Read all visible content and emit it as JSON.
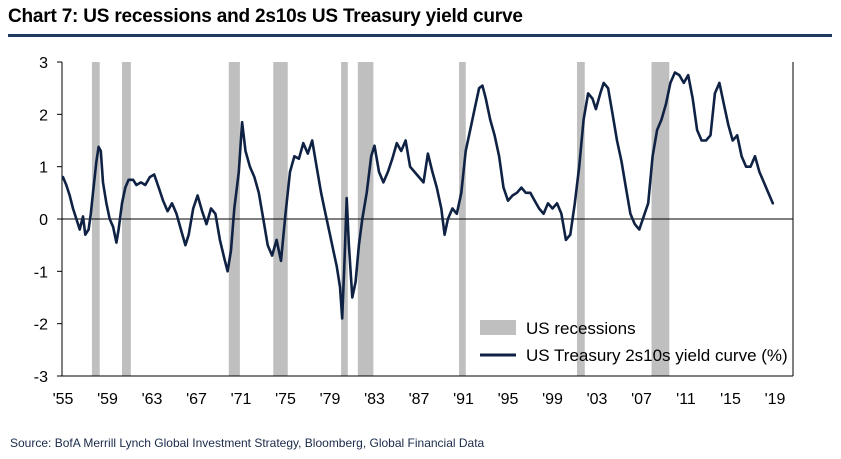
{
  "header": {
    "title": "Chart 7: US recessions and 2s10s US Treasury yield curve"
  },
  "footer": {
    "source": "Source:  BofA Merrill Lynch Global Investment Strategy, Bloomberg, Global Financial Data"
  },
  "chart_data": {
    "type": "line",
    "title": "Chart 7: US recessions and 2s10s US Treasury yield curve",
    "xlim": [
      1955,
      2020
    ],
    "ylim": [
      -3,
      3
    ],
    "x_ticks": [
      {
        "value": 1955,
        "label": "'55"
      },
      {
        "value": 1959,
        "label": "'59"
      },
      {
        "value": 1963,
        "label": "'63"
      },
      {
        "value": 1967,
        "label": "'67"
      },
      {
        "value": 1971,
        "label": "'71"
      },
      {
        "value": 1975,
        "label": "'75"
      },
      {
        "value": 1979,
        "label": "'79"
      },
      {
        "value": 1983,
        "label": "'83"
      },
      {
        "value": 1987,
        "label": "'87"
      },
      {
        "value": 1991,
        "label": "'91"
      },
      {
        "value": 1995,
        "label": "'95"
      },
      {
        "value": 1999,
        "label": "'99"
      },
      {
        "value": 2003,
        "label": "'03"
      },
      {
        "value": 2007,
        "label": "'07"
      },
      {
        "value": 2011,
        "label": "'11"
      },
      {
        "value": 2015,
        "label": "'15"
      },
      {
        "value": 2019,
        "label": "'19"
      }
    ],
    "y_ticks": [
      {
        "value": 3,
        "label": "3"
      },
      {
        "value": 2,
        "label": "2"
      },
      {
        "value": 1,
        "label": "1"
      },
      {
        "value": 0,
        "label": "0"
      },
      {
        "value": -1,
        "label": "-1"
      },
      {
        "value": -2,
        "label": "-2"
      },
      {
        "value": -3,
        "label": "-3"
      }
    ],
    "grid": false,
    "legend_position": "bottom-right",
    "colors": {
      "line": "#0f2244",
      "recession": "#bfbfbf"
    },
    "recessions": {
      "name": "US recessions",
      "periods": [
        [
          1957.6,
          1958.3
        ],
        [
          1960.3,
          1961.1
        ],
        [
          1969.9,
          1970.9
        ],
        [
          1973.9,
          1975.2
        ],
        [
          1980.0,
          1980.6
        ],
        [
          1981.5,
          1982.9
        ],
        [
          1990.6,
          1991.2
        ],
        [
          2001.2,
          2001.9
        ],
        [
          2007.9,
          2009.5
        ]
      ]
    },
    "series": [
      {
        "name": "US Treasury 2s10s yield curve (%)",
        "points": [
          [
            1955.0,
            0.8
          ],
          [
            1955.3,
            0.65
          ],
          [
            1955.6,
            0.45
          ],
          [
            1955.9,
            0.2
          ],
          [
            1956.2,
            0.0
          ],
          [
            1956.5,
            -0.2
          ],
          [
            1956.8,
            0.05
          ],
          [
            1957.0,
            -0.3
          ],
          [
            1957.3,
            -0.2
          ],
          [
            1957.5,
            0.1
          ],
          [
            1957.7,
            0.5
          ],
          [
            1958.0,
            1.1
          ],
          [
            1958.2,
            1.38
          ],
          [
            1958.4,
            1.3
          ],
          [
            1958.6,
            0.7
          ],
          [
            1958.9,
            0.3
          ],
          [
            1959.2,
            0.0
          ],
          [
            1959.5,
            -0.15
          ],
          [
            1959.8,
            -0.45
          ],
          [
            1960.0,
            -0.2
          ],
          [
            1960.3,
            0.3
          ],
          [
            1960.6,
            0.6
          ],
          [
            1960.9,
            0.75
          ],
          [
            1961.3,
            0.75
          ],
          [
            1961.6,
            0.65
          ],
          [
            1962.0,
            0.7
          ],
          [
            1962.4,
            0.65
          ],
          [
            1962.8,
            0.8
          ],
          [
            1963.2,
            0.85
          ],
          [
            1963.6,
            0.6
          ],
          [
            1964.0,
            0.35
          ],
          [
            1964.4,
            0.15
          ],
          [
            1964.8,
            0.3
          ],
          [
            1965.2,
            0.1
          ],
          [
            1965.6,
            -0.2
          ],
          [
            1966.0,
            -0.5
          ],
          [
            1966.3,
            -0.3
          ],
          [
            1966.7,
            0.2
          ],
          [
            1967.1,
            0.45
          ],
          [
            1967.5,
            0.15
          ],
          [
            1967.9,
            -0.1
          ],
          [
            1968.3,
            0.2
          ],
          [
            1968.7,
            0.1
          ],
          [
            1969.1,
            -0.4
          ],
          [
            1969.5,
            -0.75
          ],
          [
            1969.8,
            -1.0
          ],
          [
            1970.1,
            -0.6
          ],
          [
            1970.4,
            0.2
          ],
          [
            1970.8,
            0.9
          ],
          [
            1971.1,
            1.85
          ],
          [
            1971.4,
            1.3
          ],
          [
            1971.8,
            1.0
          ],
          [
            1972.2,
            0.8
          ],
          [
            1972.6,
            0.5
          ],
          [
            1973.0,
            0.0
          ],
          [
            1973.4,
            -0.5
          ],
          [
            1973.8,
            -0.7
          ],
          [
            1974.2,
            -0.4
          ],
          [
            1974.6,
            -0.8
          ],
          [
            1975.0,
            0.1
          ],
          [
            1975.4,
            0.9
          ],
          [
            1975.8,
            1.2
          ],
          [
            1976.2,
            1.15
          ],
          [
            1976.6,
            1.45
          ],
          [
            1977.0,
            1.25
          ],
          [
            1977.4,
            1.5
          ],
          [
            1977.8,
            1.0
          ],
          [
            1978.2,
            0.5
          ],
          [
            1978.6,
            0.1
          ],
          [
            1979.0,
            -0.3
          ],
          [
            1979.3,
            -0.6
          ],
          [
            1979.6,
            -0.9
          ],
          [
            1979.9,
            -1.3
          ],
          [
            1980.1,
            -1.9
          ],
          [
            1980.3,
            -0.8
          ],
          [
            1980.5,
            0.4
          ],
          [
            1980.7,
            -0.5
          ],
          [
            1981.0,
            -1.5
          ],
          [
            1981.3,
            -1.2
          ],
          [
            1981.6,
            -0.5
          ],
          [
            1981.9,
            0.0
          ],
          [
            1982.3,
            0.5
          ],
          [
            1982.7,
            1.2
          ],
          [
            1983.0,
            1.4
          ],
          [
            1983.4,
            0.9
          ],
          [
            1983.8,
            0.7
          ],
          [
            1984.2,
            0.9
          ],
          [
            1984.6,
            1.15
          ],
          [
            1985.0,
            1.45
          ],
          [
            1985.4,
            1.3
          ],
          [
            1985.8,
            1.5
          ],
          [
            1986.2,
            1.0
          ],
          [
            1986.6,
            0.9
          ],
          [
            1987.0,
            0.8
          ],
          [
            1987.4,
            0.7
          ],
          [
            1987.8,
            1.25
          ],
          [
            1988.2,
            0.9
          ],
          [
            1988.6,
            0.6
          ],
          [
            1989.0,
            0.2
          ],
          [
            1989.3,
            -0.3
          ],
          [
            1989.6,
            0.0
          ],
          [
            1990.0,
            0.2
          ],
          [
            1990.4,
            0.1
          ],
          [
            1990.8,
            0.5
          ],
          [
            1991.2,
            1.3
          ],
          [
            1991.6,
            1.7
          ],
          [
            1992.0,
            2.1
          ],
          [
            1992.4,
            2.5
          ],
          [
            1992.7,
            2.55
          ],
          [
            1993.0,
            2.3
          ],
          [
            1993.4,
            1.9
          ],
          [
            1993.8,
            1.6
          ],
          [
            1994.2,
            1.2
          ],
          [
            1994.6,
            0.6
          ],
          [
            1995.0,
            0.35
          ],
          [
            1995.4,
            0.45
          ],
          [
            1995.8,
            0.5
          ],
          [
            1996.2,
            0.6
          ],
          [
            1996.6,
            0.5
          ],
          [
            1997.0,
            0.5
          ],
          [
            1997.4,
            0.35
          ],
          [
            1997.8,
            0.2
          ],
          [
            1998.2,
            0.1
          ],
          [
            1998.6,
            0.3
          ],
          [
            1999.0,
            0.2
          ],
          [
            1999.4,
            0.3
          ],
          [
            1999.8,
            0.1
          ],
          [
            2000.2,
            -0.4
          ],
          [
            2000.6,
            -0.3
          ],
          [
            2001.0,
            0.3
          ],
          [
            2001.4,
            1.0
          ],
          [
            2001.8,
            1.9
          ],
          [
            2002.2,
            2.4
          ],
          [
            2002.6,
            2.3
          ],
          [
            2002.9,
            2.1
          ],
          [
            2003.3,
            2.4
          ],
          [
            2003.6,
            2.6
          ],
          [
            2004.0,
            2.5
          ],
          [
            2004.4,
            2.0
          ],
          [
            2004.8,
            1.5
          ],
          [
            2005.2,
            1.1
          ],
          [
            2005.6,
            0.6
          ],
          [
            2006.0,
            0.1
          ],
          [
            2006.4,
            -0.1
          ],
          [
            2006.8,
            -0.2
          ],
          [
            2007.2,
            0.05
          ],
          [
            2007.6,
            0.3
          ],
          [
            2008.0,
            1.2
          ],
          [
            2008.4,
            1.7
          ],
          [
            2008.8,
            1.9
          ],
          [
            2009.2,
            2.2
          ],
          [
            2009.6,
            2.6
          ],
          [
            2010.0,
            2.8
          ],
          [
            2010.4,
            2.75
          ],
          [
            2010.8,
            2.6
          ],
          [
            2011.2,
            2.75
          ],
          [
            2011.6,
            2.3
          ],
          [
            2012.0,
            1.7
          ],
          [
            2012.4,
            1.5
          ],
          [
            2012.8,
            1.5
          ],
          [
            2013.2,
            1.6
          ],
          [
            2013.6,
            2.4
          ],
          [
            2014.0,
            2.6
          ],
          [
            2014.4,
            2.2
          ],
          [
            2014.8,
            1.8
          ],
          [
            2015.2,
            1.5
          ],
          [
            2015.6,
            1.6
          ],
          [
            2016.0,
            1.2
          ],
          [
            2016.4,
            1.0
          ],
          [
            2016.8,
            1.0
          ],
          [
            2017.2,
            1.2
          ],
          [
            2017.6,
            0.9
          ],
          [
            2018.0,
            0.7
          ],
          [
            2018.4,
            0.5
          ],
          [
            2018.8,
            0.3
          ]
        ]
      }
    ]
  }
}
